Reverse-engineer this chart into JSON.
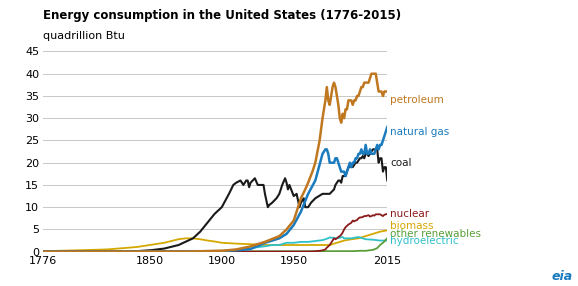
{
  "title": "Energy consumption in the United States (1776-2015)",
  "ylabel": "quadrillion Btu",
  "ylim": [
    0,
    45
  ],
  "xlim": [
    1776,
    2015
  ],
  "xticks": [
    1776,
    1850,
    1900,
    1950,
    2015
  ],
  "yticks": [
    0,
    5,
    10,
    15,
    20,
    25,
    30,
    35,
    40,
    45
  ],
  "colors": {
    "petroleum": "#c07820",
    "natural_gas": "#1a7bbf",
    "coal": "#1a1a1a",
    "nuclear": "#8b1a1a",
    "biomass": "#d4a800",
    "other_renewables": "#5a9e3a",
    "hydroelectric": "#30c0c8"
  },
  "labels": {
    "petroleum": "petroleum",
    "natural_gas": "natural gas",
    "coal": "coal",
    "nuclear": "nuclear",
    "biomass": "biomass",
    "other_renewables": "other renewables",
    "hydroelectric": "hydroelectric"
  },
  "bg_color": "#ffffff",
  "grid_color": "#c8c8c8",
  "eia_text": "eia"
}
